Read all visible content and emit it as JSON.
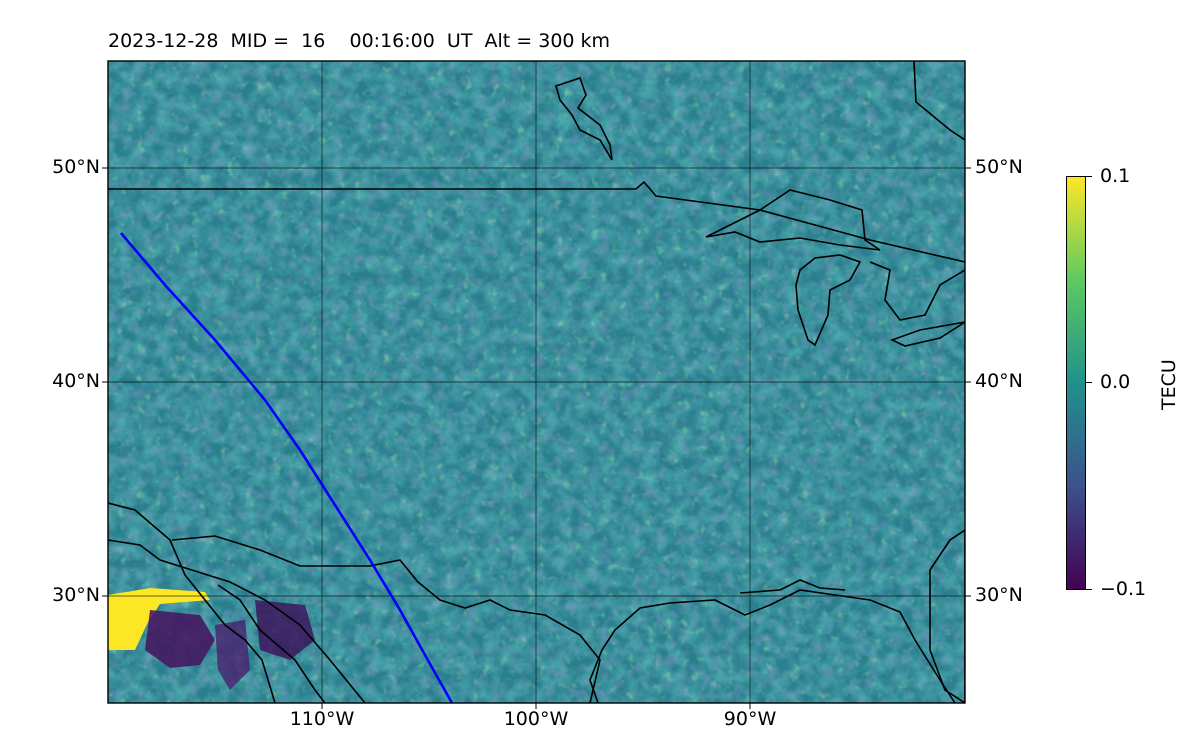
{
  "title": "2023-12-28  MID =  16    00:16:00  UT  Alt = 300 km",
  "lat_labels": [
    "50°N",
    "40°N",
    "30°N"
  ],
  "lon_labels": [
    "110°W",
    "100°W",
    "90°W"
  ],
  "colorbar": {
    "title": "TECU",
    "ticks": [
      "0.1",
      "0.0",
      "−0.1"
    ],
    "colormap": "viridis",
    "range": [
      -0.1,
      0.1
    ]
  },
  "map": {
    "extent_lon": [
      -120,
      -80
    ],
    "extent_lat": [
      25,
      55
    ],
    "gridlines": true,
    "track_color": "#0000ff",
    "coastline_color": "#000000"
  }
}
